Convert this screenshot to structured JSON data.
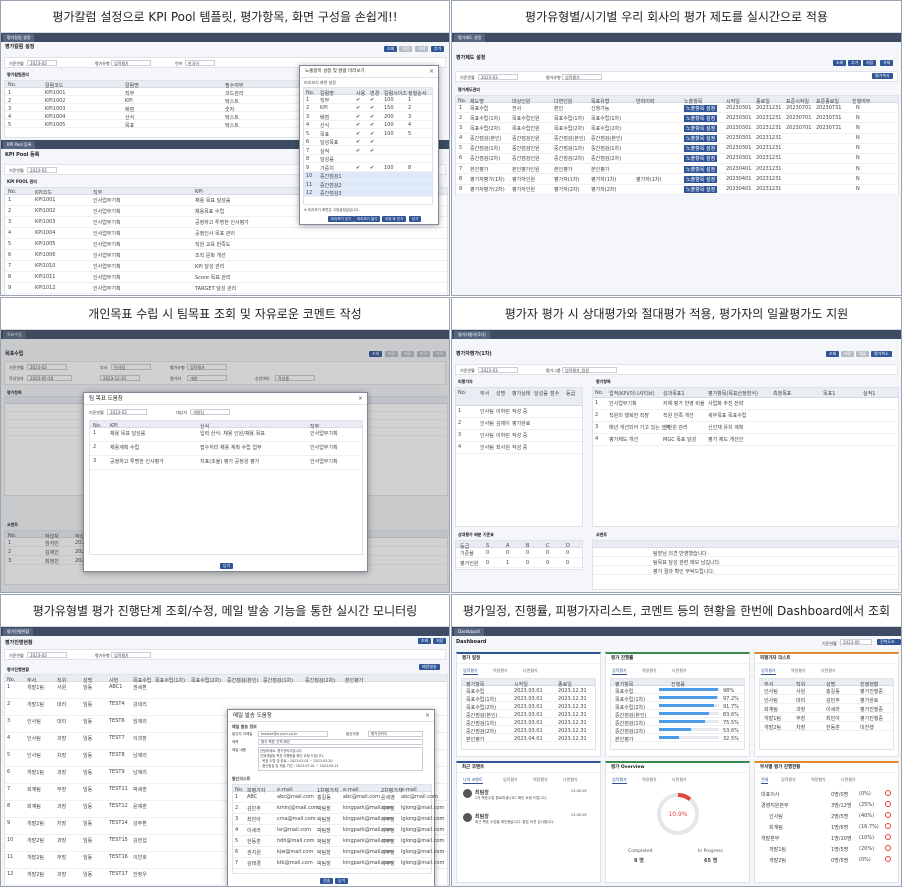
{
  "captions": [
    "평가칼럼 설정으로 KPI Pool 템플릿, 평가항목, 화면 구성을 손쉽게!!",
    "평가유형별/시기별 우리 회사의 평가 제도를 실시간으로 적용",
    "개인목표 수립 시 팀목표 조회 및 자유로운 코멘트 작성",
    "평가자 평가 시 상대평가와 절대평가 적용, 평가자의 일괄평가도 지원",
    "평가유형별 평가 진행단계 조회/수정, 메일 발송 기능을 통한 실시간 모니터링",
    "평가일정, 진행률, 피평가자리스트, 코멘트 등의 현황을 한번에 Dashboard에서 조회"
  ],
  "p1": {
    "tab": "평가칼럼 설정",
    "title": "평가칼럼 설정",
    "period_label": "기준연월",
    "period": "2023-03",
    "type_label": "평가유형",
    "type": "업적평가",
    "lang_label": "언어",
    "lang": "한국어",
    "buttons": [
      "조회",
      "저장",
      "삭제",
      "추가"
    ],
    "grid_title": "평가칼럼관리",
    "cols": [
      "No.",
      "칼럼코드",
      "칼럼명",
      "필수여부",
      "정렬"
    ],
    "rows": [
      [
        "1",
        "KPI1001",
        "직무",
        "코드관리"
      ],
      [
        "2",
        "KPI1002",
        "KPI",
        "텍스트"
      ],
      [
        "3",
        "KPI1003",
        "배점",
        "숫자"
      ],
      [
        "4",
        "KPI1004",
        "산식",
        "텍스트"
      ],
      [
        "5",
        "KPI1005",
        "목표",
        "텍스트"
      ]
    ],
    "tab2": "KPI Pool 등록",
    "title2": "KPI Pool 등록",
    "pool_title": "KPI POOL 관리",
    "cols2": [
      "No.",
      "KPI코드",
      "직무",
      "KPI"
    ],
    "pool": [
      [
        "1",
        "KPI1001",
        "인사업무기획",
        "채용 목표 달성률"
      ],
      [
        "2",
        "KPI1002",
        "인사업무기획",
        "채용목표 수립"
      ],
      [
        "3",
        "KPI1003",
        "인사업무기획",
        "공정하고 투명한 인사평가"
      ],
      [
        "4",
        "KPI1004",
        "인사업무기획",
        "공정인사 목표 관리"
      ],
      [
        "5",
        "KPI1005",
        "인사업무기획",
        "직원 교육 만족도"
      ],
      [
        "6",
        "KPI1006",
        "인사업무기획",
        "조직 문화 개선"
      ],
      [
        "7",
        "KPI1010",
        "인사업무기획",
        "KPI 달성 관리"
      ],
      [
        "8",
        "KPI1011",
        "인사업무기획",
        "Score 목표 관리"
      ],
      [
        "9",
        "KPI1012",
        "인사업무기획",
        "TARGET 달성 관리"
      ]
    ],
    "modal_title": "노출항목 설정 및 칼럼 미리보기",
    "modal_sub": "미리보기 화면 설정",
    "modal_cols": [
      "No.",
      "칼럼명",
      "사용",
      "변경",
      "칼럼사이즈",
      "정렬순서"
    ],
    "modal_rows": [
      [
        "1",
        "직무",
        "✔",
        "✔",
        "100",
        "1"
      ],
      [
        "2",
        "KPI",
        "✔",
        "✔",
        "150",
        "2"
      ],
      [
        "3",
        "배점",
        "✔",
        "✔",
        "200",
        "3"
      ],
      [
        "4",
        "산식",
        "✔",
        "✔",
        "100",
        "4"
      ],
      [
        "5",
        "목표",
        "✔",
        "✔",
        "100",
        "5"
      ],
      [
        "6",
        "달성목표",
        "✔",
        "✔",
        "",
        ""
      ],
      [
        "7",
        "실적",
        "✔",
        "✔",
        "",
        ""
      ],
      [
        "8",
        "달성률",
        "",
        "",
        "",
        ""
      ],
      [
        "9",
        "가중치",
        "✔",
        "✔",
        "100",
        "8"
      ],
      [
        "10",
        "중간점검1",
        "",
        "",
        "",
        ""
      ],
      [
        "11",
        "중간점검2",
        "",
        "",
        "",
        ""
      ],
      [
        "12",
        "중간점검3",
        "",
        "",
        "",
        ""
      ]
    ],
    "modal_note": "※ 미리보기 화면은 고정설정값입니다.",
    "modal_buttons": [
      "미리보기 닫기",
      "미리보기 열기",
      "저장 후 닫기",
      "닫기"
    ]
  },
  "p2": {
    "tab": "평가제도 설정",
    "title": "평가제도 설정",
    "period_label": "기준연월",
    "period": "2023-03",
    "group_label": "평가유형",
    "group": "업적평가",
    "buttons": [
      "조회",
      "추가",
      "저장",
      "삭제"
    ],
    "extra": "평가복사",
    "grid_title": "평가제도관리",
    "cols": [
      "No.",
      "제도명",
      "대상인원",
      "다면인원",
      "목표유형",
      "반려이력",
      "노출항목",
      "시작일",
      "종료일",
      "표준시작일",
      "표준종료일",
      "진행여부"
    ],
    "rows": [
      [
        "1",
        "목표수립",
        "전사",
        "본인",
        "신청가능",
        "",
        "노출항목 설정",
        "20230301",
        "20231231",
        "20230701",
        "20230731",
        "N"
      ],
      [
        "2",
        "목표수립(1차)",
        "목표수립인원",
        "목표수립(1차)",
        "목표수립(1차)",
        "",
        "노출항목 설정",
        "20230301",
        "20231231",
        "20230701",
        "20230731",
        "N"
      ],
      [
        "3",
        "목표수립(2차)",
        "목표수립인원",
        "목표수립(2차)",
        "목표수립(2차)",
        "",
        "노출항목 설정",
        "20230301",
        "20231231",
        "20230701",
        "20230731",
        "N"
      ],
      [
        "4",
        "중간점검(본인)",
        "중간점검인원",
        "중간점검(본인)",
        "중간점검(본인)",
        "",
        "노출항목 설정",
        "20230301",
        "20231231",
        "",
        "",
        " N"
      ],
      [
        "5",
        "중간점검(1차)",
        "중간점검인원",
        "중간점검(1차)",
        "중간점검(1차)",
        "",
        "노출항목 설정",
        "20230301",
        "20231231",
        "",
        "",
        "N"
      ],
      [
        "6",
        "중간점검(2차)",
        "중간점검인원",
        "중간점검(2차)",
        "중간점검(2차)",
        "",
        "노출항목 설정",
        "20230301",
        "20231231",
        "",
        "",
        "N"
      ],
      [
        "7",
        "본인평가",
        "본인평가인원",
        "본인평가",
        "본인평가",
        "",
        "노출항목 설정",
        "20230401",
        "20231231",
        "",
        "",
        "N"
      ],
      [
        "8",
        "평가자평가(1차)",
        "평가자인원",
        "평가자(1차)",
        "평가자(1차)",
        "평가자(1차)",
        "노출항목 설정",
        "20230401",
        "20231231",
        "",
        "",
        "N"
      ],
      [
        "9",
        "평가자평가(2차)",
        "평가자인원",
        "평가자(2차)",
        "평가자(2차)",
        "",
        "노출항목 설정",
        "20230401",
        "20231231",
        "",
        "",
        "N"
      ]
    ]
  },
  "p3": {
    "tab": "목표수립",
    "title": "목표수립",
    "period_label": "기준연월",
    "period": "2023-03",
    "dept_label": "부서",
    "dept": "인사팀",
    "type_label": "평가유형",
    "type": "업적평가",
    "write_label": "작성일자",
    "write": "2023-05-10",
    "ext_label": "기간",
    "ext": "2023-12-31",
    "evaluator_label": "평가자",
    "evaluator": "개발",
    "status_label": "승인여부",
    "status": "작성중",
    "buttons": [
      "조회",
      "저장",
      "제출",
      "반려",
      "복사"
    ],
    "grid_title": "평가항목",
    "modal_title": "팀 목표 도움창",
    "m_period_label": "기준연월",
    "m_period": "2023-03",
    "m_dept_label": "대상자",
    "m_dept": "개발팀",
    "m_cols": [
      "No.",
      "KPI",
      "산식",
      "직무"
    ],
    "m_rows": [
      [
        "1",
        "채용 목표 달성률",
        "입력 산식: 채용 인원/채용 목표",
        "인사업무기획"
      ],
      [
        "2",
        "채용계획 수립",
        "접수처리 채용 계획 수립 업무",
        "인사업무기획"
      ],
      [
        "3",
        "공정하고 투명한 인사평가",
        "지표(조율) 평가 공정성 평가",
        "인사업무기획"
      ]
    ],
    "m_close": "닫기",
    "comment_title": "코멘트",
    "comment_cols": [
      "No.",
      "작성자",
      "작성일자",
      "코멘트"
    ],
    "comments": [
      [
        "1",
        "임지민",
        "20230513"
      ],
      [
        "2",
        "김재인",
        "20230513"
      ],
      [
        "3",
        "최정민",
        "20230513"
      ]
    ]
  },
  "p4": {
    "tab": "평가자평가(1차)",
    "title": "평가자평가(1차)",
    "period_label": "기준연월",
    "period": "2023-03",
    "group_label": "평가그룹",
    "group": "업적평가_팀원",
    "buttons": [
      "조회",
      "저장",
      "제출",
      "평가취소"
    ],
    "left_title": "피평가자",
    "right_title": "평가항목",
    "left_cols": [
      "No.",
      "부서",
      "성명",
      "평가상태",
      "달성률",
      "점수",
      "등급"
    ],
    "people": [
      [
        "1",
        "인사팀",
        "이하린",
        "작성 중"
      ],
      [
        "2",
        "인사팀",
        "김재이",
        "평가완료"
      ],
      [
        "3",
        "인사팀",
        "이하린",
        "작성 중"
      ],
      [
        "4",
        "인사팀",
        "최사원",
        "작성 중"
      ]
    ],
    "right_cols": [
      "No.",
      "업적(KPI/이니셔티브)",
      "성과목표1",
      "평가항목(목표산정방식)",
      "측정목표",
      "목표1",
      "실적1"
    ],
    "items": [
      [
        "1",
        "인사업무기획",
        "자체 평가 반영 비율",
        "사업화 추진 전략"
      ],
      [
        "2",
        "직원의 행복한 직장",
        "직원 만족 개선",
        "세부목표 목표수립"
      ],
      [
        "3",
        "매년 개선되어 가고 있는 인재",
        "신인원 관리",
        "신인재 유치 계획"
      ],
      [
        "4",
        "평가제도 개선",
        "MGC 목표 달성",
        "평가 제도 개선안"
      ]
    ],
    "comment_title": "코멘트",
    "comment_lines": [
      "팀장님 의견 반영했습니다.",
      "팀목표 달성 관련 메모 남깁니다.",
      "평가 결과 확인 부탁드립니다."
    ],
    "dist_title": "상대평가 배분 기준표",
    "dist_cols": [
      "등급",
      "S",
      "A",
      "B",
      "C",
      "D"
    ],
    "dist_rows": [
      [
        "기준율",
        "0",
        "0",
        "0",
        "0",
        "0"
      ],
      [
        "평가인원",
        "0",
        "1",
        "0",
        "0",
        "0"
      ]
    ]
  },
  "p5": {
    "tab": "평가진행현황",
    "title": "평가진행현황",
    "period_label": "기준연월",
    "period": "2023-03",
    "type_label": "평가유형",
    "type": "업적평가",
    "buttons": [
      "조회",
      "저장"
    ],
    "mail_button": "메일발송",
    "grid_title": "평가진행현황",
    "cols": [
      "No.",
      "부서",
      "직위",
      "성명",
      "사번",
      "목표수립",
      "목표수립(1차)",
      "목표수립(2차)",
      "중간점검(본인)",
      "중간점검(1차)",
      "중간점검(2차)",
      "본인평가"
    ],
    "rows": [
      [
        "1",
        "개발1팀",
        "사원",
        "임동",
        "ABC1",
        "권세환"
      ],
      [
        "2",
        "개발1팀",
        "대리",
        "임동",
        "TEST4",
        "강대리"
      ],
      [
        "3",
        "인사팀",
        "대리",
        "임동",
        "TEST6",
        "임재리"
      ],
      [
        "4",
        "인사팀",
        "과장",
        "임동",
        "TEST7",
        "이과장"
      ],
      [
        "5",
        "인사팀",
        "차장",
        "임동",
        "TEST8",
        "남재리"
      ],
      [
        "6",
        "개발1팀",
        "과장",
        "임동",
        "TEST9",
        "남재리"
      ],
      [
        "7",
        "회계팀",
        "부장",
        "임동",
        "TEST11",
        "박세훈"
      ],
      [
        "8",
        "회계팀",
        "과장",
        "임동",
        "TEST12",
        "윤재훈"
      ],
      [
        "9",
        "개발2팀",
        "차장",
        "임동",
        "TEST14",
        "강주환"
      ],
      [
        "10",
        "개발2팀",
        "과장",
        "임동",
        "TEST15",
        "김현섭"
      ],
      [
        "11",
        "개발2팀",
        "부장",
        "임동",
        "TEST16",
        "이민호"
      ],
      [
        "12",
        "개발2팀",
        "과장",
        "임동",
        "TEST17",
        "한정우"
      ]
    ],
    "mail_title": "메일 발송 도움창",
    "mail_info": "메일 발송 정보",
    "sender_label": "발신자 이메일",
    "sender": "master@e-pcm.co.kr",
    "sender_name_label": "발신자명",
    "sender_name": "평가관리자",
    "subject_label": "제목",
    "subject": "평가 목표 진척 확인",
    "body_label": "메일 내용",
    "body_lines": [
      "안녕하세요. 평가관리자입니다.",
      "인재개발팀 목표 이행현황 확인 요청 드립니다.",
      "- 목표 수립 및 완료 : 2023.03.01 ~ 2023.03.20",
      "- 중간점검 및 제출 기간 : 2023.07.01 ~ 2023.09.14"
    ],
    "recv_title": "발신리스트",
    "recv_cols": [
      "No.",
      "피평가자",
      "e-mail",
      "1차평가자",
      "e-mail",
      "2차평가자",
      "e-mail"
    ],
    "recv": [
      [
        "1",
        "ABC",
        "abc@mail.com",
        "홍길동",
        "abc@mail.com",
        "윤세영",
        "abc@mail.com"
      ],
      [
        "2",
        "김민주",
        "kminj@mail.com",
        "박팀장",
        "kingpark@mail.com",
        "이부장",
        "lglong@mail.com"
      ],
      [
        "3",
        "최민아",
        "cma@mail.com",
        "박팀장",
        "kingpark@mail.com",
        "이부장",
        "lglong@mail.com"
      ],
      [
        "4",
        "이세라",
        "lsr@mail.com",
        "박팀장",
        "kingpark@mail.com",
        "이부장",
        "lglong@mail.com"
      ],
      [
        "5",
        "한동훈",
        "hdh@mail.com",
        "박팀장",
        "kingpark@mail.com",
        "이부장",
        "lglong@mail.com"
      ],
      [
        "6",
        "권지원",
        "kjw@mail.com",
        "박팀장",
        "kingpark@mail.com",
        "이부장",
        "lglong@mail.com"
      ],
      [
        "7",
        "김태경",
        "ktk@mail.com",
        "박팀장",
        "kingpark@mail.com",
        "이부장",
        "lglong@mail.com"
      ]
    ],
    "mail_buttons": [
      "전송",
      "닫기"
    ]
  },
  "p6": {
    "tab": "Dashboard",
    "title": "Dashboard",
    "period_label": "기준연월",
    "period": "2023-05",
    "btn": "진척도조회",
    "c1_title": "평가 일정",
    "c2_title": "평가 진행률",
    "c3_title": "피평가자 리스트",
    "c4_title": "최근 코멘트",
    "c5_title": "평가 Overview",
    "c6_title": "부서별 평가 진행현황",
    "c1_tabs": [
      "업적평가",
      "역량평가",
      "다면평가"
    ],
    "c1_cols": [
      "평가항목",
      "시작일",
      "종료일"
    ],
    "c1_rows": [
      [
        "목표수립",
        "2023.03.01",
        "2023.12.31"
      ],
      [
        "목표수립(1차)",
        "2023.03.01",
        "2023.12.31"
      ],
      [
        "목표수립(2차)",
        "2023.03.01",
        "2023.12.31"
      ],
      [
        "중간점검(본인)",
        "2023.03.01",
        "2023.12.31"
      ],
      [
        "중간점검(1차)",
        "2023.03.01",
        "2023.12.31"
      ],
      [
        "중간점검(2차)",
        "2023.03.01",
        "2023.12.31"
      ],
      [
        "본인평가",
        "2023.04.01",
        "2023.12.31"
      ]
    ],
    "c2_tabs": [
      "업적평가",
      "역량평가",
      "다면평가"
    ],
    "c2_cols": [
      "평가항목",
      "진행률"
    ],
    "c2_rows": [
      {
        "name": "목표수립",
        "pct": 98,
        "label": "98%"
      },
      {
        "name": "목표수립(1차)",
        "pct": 97,
        "label": "97.2%"
      },
      {
        "name": "목표수립(2차)",
        "pct": 92,
        "label": "91.7%"
      },
      {
        "name": "중간점검(본인)",
        "pct": 84,
        "label": "83.6%"
      },
      {
        "name": "중간점검(1차)",
        "pct": 76,
        "label": "75.5%"
      },
      {
        "name": "중간점검(2차)",
        "pct": 54,
        "label": "53.6%"
      },
      {
        "name": "본인평가",
        "pct": 33,
        "label": "32.5%"
      }
    ],
    "c3_tabs": [
      "업적평가",
      "역량평가",
      "다면평가"
    ],
    "c3_cols": [
      "부서",
      "직위",
      "성명",
      "진행현황"
    ],
    "c3_rows": [
      [
        "인사팀",
        "사원",
        "홍길동",
        "평가진행중"
      ],
      [
        "인사팀",
        "대리",
        "김민주",
        "평가완료"
      ],
      [
        "회계팀",
        "과장",
        "이세라",
        "평가진행중"
      ],
      [
        "개발1팀",
        "부장",
        "최민아",
        "평가진행중"
      ],
      [
        "개발2팀",
        "차장",
        "한동훈",
        "미진행"
      ]
    ],
    "c4_tabs": [
      "나의 코멘트",
      "업적평가",
      "역량평가",
      "다면평가"
    ],
    "c4_items": [
      {
        "name": "최팀장",
        "text": "2차 목표수립 완료하셨나요? 확인 요청 드립니다.",
        "date": "23.05.26"
      },
      {
        "name": "최팀장",
        "text": "최근 목표 수립을 확인했습니다. 좋은 의견 감사합니다.",
        "date": "23.05.26"
      }
    ],
    "c5_tabs": [
      "업적평가",
      "역량평가",
      "다면평가"
    ],
    "c5_pct": "10.9%",
    "c5_pct_value": 10.9,
    "c5_done_label": "Completed",
    "c5_done": "8 명",
    "c5_prog_label": "In Progress",
    "c5_prog": "65 명",
    "c6_tabs": [
      "전체",
      "업적평가",
      "역량평가",
      "다면평가"
    ],
    "c6_rows": [
      [
        "대표이사",
        "0명/0명",
        "(0%)"
      ],
      [
        "경영지원본부",
        "3명/12명",
        "(25%)"
      ],
      [
        "인사팀",
        "2명/5명",
        "(40%)"
      ],
      [
        "회계팀",
        "1명/6명",
        "(16.7%)"
      ],
      [
        "개발본부",
        "1명/10명",
        "(10%)"
      ],
      [
        "개발1팀",
        "1명/5명",
        "(20%)"
      ],
      [
        "개발2팀",
        "0명/5명",
        "(0%)"
      ]
    ]
  }
}
